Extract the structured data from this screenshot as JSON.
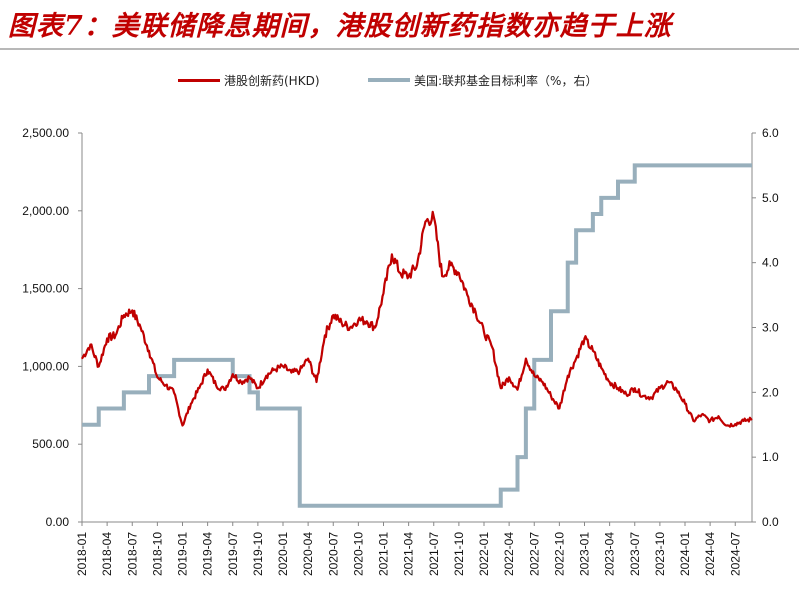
{
  "title": "图表7：美联储降息期间，港股创新药指数亦趋于上涨",
  "colors": {
    "title": "#c00000",
    "index_line": "#c00000",
    "rate_line": "#98afbc",
    "axis": "#888888"
  },
  "chart_data": {
    "type": "line",
    "title": "图表7：美联储降息期间，港股创新药指数亦趋于上涨",
    "legend_position": "top-center",
    "grid": false,
    "x_labels": [
      "2018-01",
      "2018-04",
      "2018-07",
      "2018-10",
      "2019-01",
      "2019-04",
      "2019-07",
      "2019-10",
      "2020-01",
      "2020-04",
      "2020-07",
      "2020-10",
      "2021-01",
      "2021-04",
      "2021-07",
      "2021-10",
      "2022-01",
      "2022-04",
      "2022-07",
      "2022-10",
      "2023-01",
      "2023-04",
      "2023-07",
      "2023-10",
      "2024-01",
      "2024-04",
      "2024-07"
    ],
    "y_left": {
      "ticks": [
        "0.00",
        "500.00",
        "1,000.00",
        "1,500.00",
        "2,000.00",
        "2,500.00"
      ],
      "range": [
        0,
        2500
      ]
    },
    "y_right": {
      "ticks": [
        "0.0",
        "1.0",
        "2.0",
        "3.0",
        "4.0",
        "5.0",
        "6.0"
      ],
      "range": [
        0,
        6
      ]
    },
    "series": [
      {
        "name": "港股创新药(HKD)",
        "axis": "left",
        "color": "#c00000",
        "points": [
          [
            "2018-01",
            1050
          ],
          [
            "2018-02",
            1140
          ],
          [
            "2018-03",
            1000
          ],
          [
            "2018-04",
            1180
          ],
          [
            "2018-05",
            1200
          ],
          [
            "2018-06",
            1330
          ],
          [
            "2018-07",
            1360
          ],
          [
            "2018-08",
            1250
          ],
          [
            "2018-09",
            1100
          ],
          [
            "2018-10",
            930
          ],
          [
            "2018-11",
            880
          ],
          [
            "2018-12",
            830
          ],
          [
            "2019-01",
            620
          ],
          [
            "2019-02",
            760
          ],
          [
            "2019-03",
            860
          ],
          [
            "2019-04",
            980
          ],
          [
            "2019-05",
            880
          ],
          [
            "2019-06",
            850
          ],
          [
            "2019-07",
            950
          ],
          [
            "2019-08",
            900
          ],
          [
            "2019-09",
            930
          ],
          [
            "2019-10",
            860
          ],
          [
            "2019-11",
            940
          ],
          [
            "2019-12",
            980
          ],
          [
            "2020-01",
            1000
          ],
          [
            "2020-02",
            960
          ],
          [
            "2020-03",
            970
          ],
          [
            "2020-04",
            1050
          ],
          [
            "2020-05",
            900
          ],
          [
            "2020-06",
            1200
          ],
          [
            "2020-07",
            1330
          ],
          [
            "2020-08",
            1280
          ],
          [
            "2020-09",
            1250
          ],
          [
            "2020-10",
            1300
          ],
          [
            "2020-11",
            1290
          ],
          [
            "2020-12",
            1250
          ],
          [
            "2021-01",
            1470
          ],
          [
            "2021-02",
            1720
          ],
          [
            "2021-03",
            1600
          ],
          [
            "2021-04",
            1580
          ],
          [
            "2021-05",
            1650
          ],
          [
            "2021-06",
            1930
          ],
          [
            "2021-07",
            1960
          ],
          [
            "2021-08",
            1580
          ],
          [
            "2021-09",
            1650
          ],
          [
            "2021-10",
            1600
          ],
          [
            "2021-11",
            1460
          ],
          [
            "2021-12",
            1350
          ],
          [
            "2022-01",
            1220
          ],
          [
            "2022-02",
            1120
          ],
          [
            "2022-03",
            860
          ],
          [
            "2022-04",
            930
          ],
          [
            "2022-05",
            850
          ],
          [
            "2022-06",
            1050
          ],
          [
            "2022-07",
            940
          ],
          [
            "2022-08",
            900
          ],
          [
            "2022-09",
            810
          ],
          [
            "2022-10",
            730
          ],
          [
            "2022-11",
            940
          ],
          [
            "2022-12",
            1050
          ],
          [
            "2023-01",
            1180
          ],
          [
            "2023-02",
            1100
          ],
          [
            "2023-03",
            990
          ],
          [
            "2023-04",
            900
          ],
          [
            "2023-05",
            860
          ],
          [
            "2023-06",
            820
          ],
          [
            "2023-07",
            860
          ],
          [
            "2023-08",
            810
          ],
          [
            "2023-09",
            800
          ],
          [
            "2023-10",
            860
          ],
          [
            "2023-11",
            900
          ],
          [
            "2023-12",
            850
          ],
          [
            "2024-01",
            760
          ],
          [
            "2024-02",
            650
          ],
          [
            "2024-03",
            690
          ],
          [
            "2024-04",
            650
          ],
          [
            "2024-05",
            680
          ],
          [
            "2024-06",
            620
          ],
          [
            "2024-07",
            630
          ],
          [
            "2024-08",
            650
          ],
          [
            "2024-09",
            660
          ]
        ]
      },
      {
        "name": "美国:联邦基金目标利率（%，右）",
        "axis": "right",
        "color": "#98afbc",
        "step": true,
        "points": [
          [
            "2018-01",
            1.5
          ],
          [
            "2018-03",
            1.75
          ],
          [
            "2018-06",
            2.0
          ],
          [
            "2018-09",
            2.25
          ],
          [
            "2018-12",
            2.5
          ],
          [
            "2019-07",
            2.25
          ],
          [
            "2019-09",
            2.0
          ],
          [
            "2019-10",
            1.75
          ],
          [
            "2020-03",
            1.0
          ],
          [
            "2020-03",
            0.25
          ],
          [
            "2022-03",
            0.5
          ],
          [
            "2022-05",
            1.0
          ],
          [
            "2022-06",
            1.75
          ],
          [
            "2022-07",
            2.5
          ],
          [
            "2022-09",
            3.25
          ],
          [
            "2022-11",
            4.0
          ],
          [
            "2022-12",
            4.5
          ],
          [
            "2023-02",
            4.75
          ],
          [
            "2023-03",
            5.0
          ],
          [
            "2023-05",
            5.25
          ],
          [
            "2023-07",
            5.5
          ],
          [
            "2024-09",
            5.5
          ]
        ]
      }
    ]
  }
}
